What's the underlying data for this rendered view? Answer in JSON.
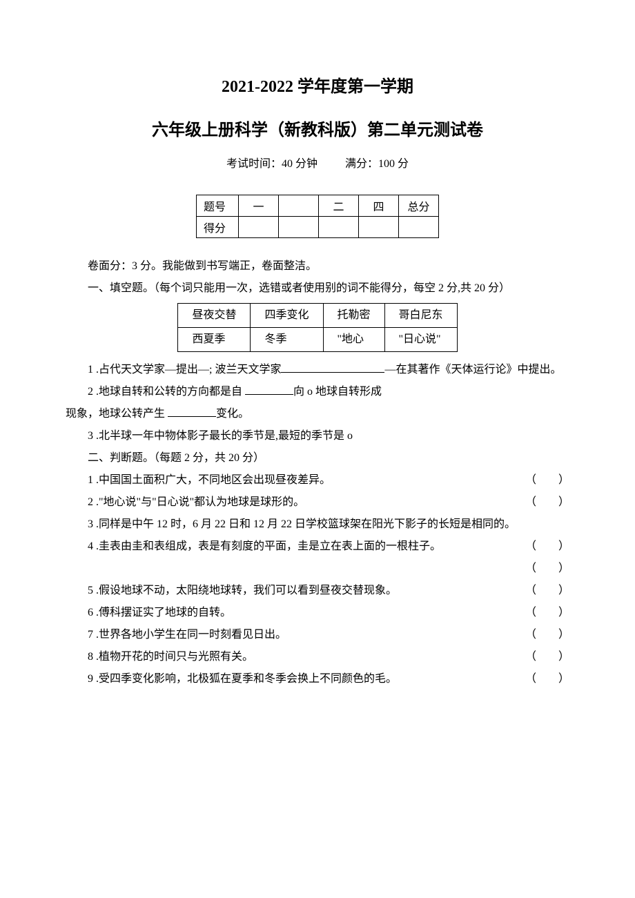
{
  "title1": "2021-2022 学年度第一学期",
  "title2": "六年级上册科学（新教科版）第二单元测试卷",
  "exam_time": "考试时间：40 分钟",
  "full_score": "满分：100 分",
  "score_table": {
    "row1": [
      "题号",
      "一",
      "",
      "二",
      "四",
      "总分"
    ],
    "row2": [
      "得分",
      "",
      "",
      "",
      "",
      ""
    ]
  },
  "surface": "卷面分：3 分。我能做到书写端正，卷面整洁。",
  "section1_title": "一、填空题。（每个词只能用一次，选错或者使用别的词不能得分，每空 2 分,共 20 分）",
  "word_box": {
    "r1": [
      "昼夜交替",
      "四季变化",
      "托勒密",
      "哥白尼东"
    ],
    "r2": [
      "西夏季",
      "冬季",
      "\"地心",
      "\"日心说\""
    ]
  },
  "q1_1a": "1 .占代天文学家—提出—; 波兰天文学家",
  "q1_1b": "—在其著作《天体运行论》中提出。",
  "q1_2a": "2 .地球自转和公转的方向都是自 ",
  "q1_2b": "向 o 地球自转形成",
  "q1_2c": "现象，地球公转产生 ",
  "q1_2d": "变化。",
  "q1_3": "3 .北半球一年中物体影子最长的季节是,最短的季节是 o",
  "section2_title": "二、判断题。（每题 2 分，共 20 分）",
  "judge": [
    "1 .中国国土面积广大，不同地区会出现昼夜差异。",
    "2 .\"地心说\"与\"日心说\"都认为地球是球形的。",
    "3 .同样是中午 12 时，6 月 22 日和 12 月 22 日学校篮球架在阳光下影子的长短是相同的。",
    "4 .圭表由圭和表组成，表是有刻度的平面，圭是立在表上面的一根柱子。",
    "5 .假设地球不动，太阳绕地球转，我们可以看到昼夜交替现象。",
    "6 .傅科摆证实了地球的自转。",
    "7 .世界各地小学生在同一时刻看见日出。",
    "8 .植物开花的时间只与光照有关。",
    "9 .受四季变化影响，北极狐在夏季和冬季会换上不同颜色的毛。"
  ],
  "paren": "（　　）"
}
